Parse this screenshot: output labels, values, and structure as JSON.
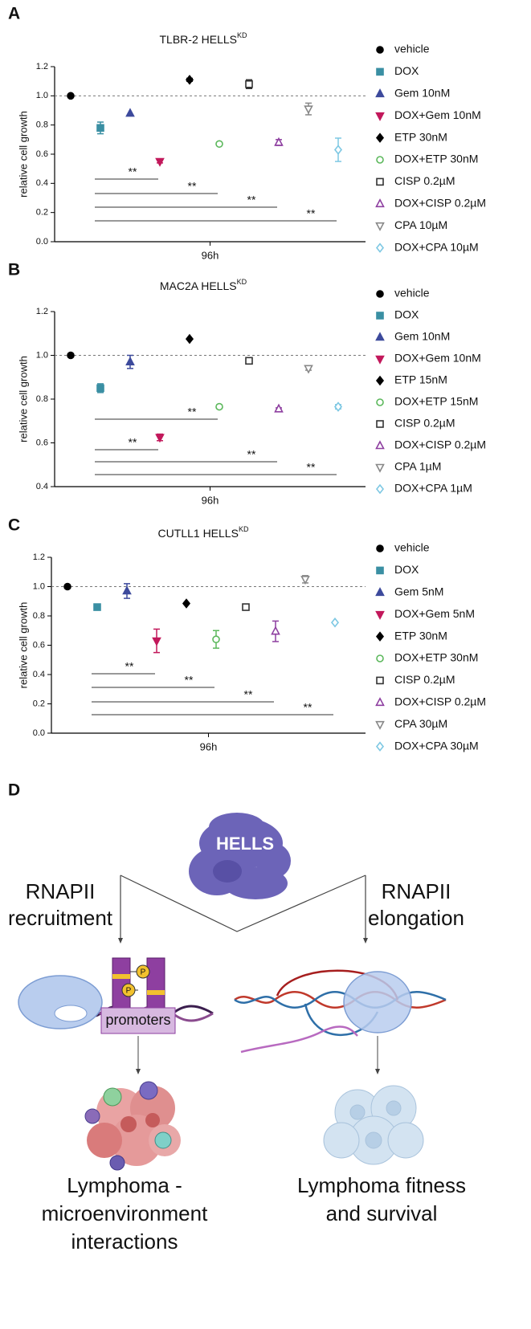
{
  "panel_labels": [
    "A",
    "B",
    "C",
    "D"
  ],
  "chart_data": [
    {
      "type": "dotplot",
      "title": "TLBR-2 HELLS",
      "title_sup": "KD",
      "y_label": "relative cell growth",
      "categories": [
        "96h"
      ],
      "ylim": [
        0,
        1.2
      ],
      "yticks": [
        {
          "value": 0,
          "label": "0.0"
        },
        0.2,
        0.4,
        0.6,
        0.8,
        {
          "value": 1,
          "label": "1.0"
        },
        1.2
      ],
      "refline": 1,
      "legend": "right",
      "series": [
        {
          "name": "vehicle",
          "color": "#000000",
          "marker": "circle",
          "filled": true,
          "values": [
            1.0
          ],
          "errors": [
            0
          ]
        },
        {
          "name": "DOX",
          "color": "#3a8fa3",
          "marker": "square",
          "filled": true,
          "values": [
            0.78
          ],
          "errors": [
            0.04
          ]
        },
        {
          "name": "Gem 10nM",
          "color": "#3d4a9c",
          "marker": "triangle",
          "filled": true,
          "values": [
            0.88
          ],
          "errors": [
            0
          ]
        },
        {
          "name": "DOX+Gem 10nM",
          "color": "#c2185b",
          "marker": "triangle-down",
          "filled": true,
          "values": [
            0.55
          ],
          "errors": [
            0.01
          ]
        },
        {
          "name": "ETP 30nM",
          "color": "#000000",
          "marker": "diamond",
          "filled": true,
          "values": [
            1.11
          ],
          "errors": [
            0.01
          ]
        },
        {
          "name": "DOX+ETP 30nM",
          "color": "#5cb85c",
          "marker": "circle",
          "filled": false,
          "values": [
            0.67
          ],
          "errors": [
            0.01
          ]
        },
        {
          "name": "CISP 0.2µM",
          "color": "#333333",
          "marker": "square",
          "filled": false,
          "values": [
            1.08
          ],
          "errors": [
            0.03
          ]
        },
        {
          "name": "DOX+CISP 0.2µM",
          "color": "#8e3fa0",
          "marker": "triangle",
          "filled": false,
          "values": [
            0.68
          ],
          "errors": [
            0.02
          ]
        },
        {
          "name": "CPA 10µM",
          "color": "#888888",
          "marker": "triangle-down",
          "filled": false,
          "values": [
            0.91
          ],
          "errors": [
            0.04
          ]
        },
        {
          "name": "DOX+CPA 10µM",
          "color": "#7ec8e3",
          "marker": "diamond",
          "filled": false,
          "values": [
            0.63
          ],
          "errors": [
            0.08
          ]
        }
      ],
      "comparisons": [
        {
          "from": "DOX",
          "to": "DOX+Gem 10nM",
          "label": "**"
        },
        {
          "from": "DOX",
          "to": "DOX+ETP 30nM",
          "label": "**"
        },
        {
          "from": "DOX",
          "to": "DOX+CISP 0.2µM",
          "label": "**"
        },
        {
          "from": "DOX",
          "to": "DOX+CPA 10µM",
          "label": "**"
        }
      ]
    },
    {
      "type": "dotplot",
      "title": "MAC2A HELLS",
      "title_sup": "KD",
      "y_label": "relative cell growth",
      "categories": [
        "96h"
      ],
      "ylim": [
        0.4,
        1.2
      ],
      "yticks": [
        0.4,
        0.6,
        0.8,
        {
          "value": 1,
          "label": "1.0"
        },
        1.2
      ],
      "refline": 1,
      "legend": "right",
      "series": [
        {
          "name": "vehicle",
          "color": "#000000",
          "marker": "circle",
          "filled": true,
          "values": [
            1.0
          ],
          "errors": [
            0
          ]
        },
        {
          "name": "DOX",
          "color": "#3a8fa3",
          "marker": "square",
          "filled": true,
          "values": [
            0.85
          ],
          "errors": [
            0.02
          ]
        },
        {
          "name": "Gem 10nM",
          "color": "#3d4a9c",
          "marker": "triangle",
          "filled": true,
          "values": [
            0.97
          ],
          "errors": [
            0.03
          ]
        },
        {
          "name": "DOX+Gem 10nM",
          "color": "#c2185b",
          "marker": "triangle-down",
          "filled": true,
          "values": [
            0.625
          ],
          "errors": [
            0.015
          ]
        },
        {
          "name": "ETP 15nM",
          "color": "#000000",
          "marker": "diamond",
          "filled": true,
          "values": [
            1.075
          ],
          "errors": [
            0
          ]
        },
        {
          "name": "DOX+ETP 15nM",
          "color": "#5cb85c",
          "marker": "circle",
          "filled": false,
          "values": [
            0.765
          ],
          "errors": [
            0.008
          ]
        },
        {
          "name": "CISP 0.2µM",
          "color": "#333333",
          "marker": "square",
          "filled": false,
          "values": [
            0.975
          ],
          "errors": [
            0.008
          ]
        },
        {
          "name": "DOX+CISP 0.2µM",
          "color": "#8e3fa0",
          "marker": "triangle",
          "filled": false,
          "values": [
            0.755
          ],
          "errors": [
            0.005
          ]
        },
        {
          "name": "CPA 1µM",
          "color": "#888888",
          "marker": "triangle-down",
          "filled": false,
          "values": [
            0.94
          ],
          "errors": [
            0.008
          ]
        },
        {
          "name": "DOX+CPA 1µM",
          "color": "#7ec8e3",
          "marker": "diamond",
          "filled": false,
          "values": [
            0.765
          ],
          "errors": [
            0.01
          ]
        }
      ],
      "comparisons": [
        {
          "from": "DOX",
          "to": "DOX+ETP 15nM",
          "label": "**"
        },
        {
          "from": "DOX",
          "to": "DOX+Gem 10nM",
          "label": "**"
        },
        {
          "from": "DOX",
          "to": "DOX+CISP 0.2µM",
          "label": "**"
        },
        {
          "from": "DOX",
          "to": "DOX+CPA 1µM",
          "label": "**"
        }
      ]
    },
    {
      "type": "dotplot",
      "title": "CUTLL1 HELLS",
      "title_sup": "KD",
      "y_label": "relative cell growth",
      "categories": [
        "96h"
      ],
      "ylim": [
        0,
        1.2
      ],
      "yticks": [
        {
          "value": 0,
          "label": "0.0"
        },
        0.2,
        0.4,
        0.6,
        0.8,
        {
          "value": 1,
          "label": "1.0"
        },
        1.2
      ],
      "refline": 1,
      "legend": "right",
      "series": [
        {
          "name": "vehicle",
          "color": "#000000",
          "marker": "circle",
          "filled": true,
          "values": [
            1.0
          ],
          "errors": [
            0
          ]
        },
        {
          "name": "DOX",
          "color": "#3a8fa3",
          "marker": "square",
          "filled": true,
          "values": [
            0.86
          ],
          "errors": [
            0
          ]
        },
        {
          "name": "Gem 5nM",
          "color": "#3d4a9c",
          "marker": "triangle",
          "filled": true,
          "values": [
            0.97
          ],
          "errors": [
            0.05
          ]
        },
        {
          "name": "DOX+Gem 5nM",
          "color": "#c2185b",
          "marker": "triangle-down",
          "filled": true,
          "values": [
            0.63
          ],
          "errors": [
            0.08
          ]
        },
        {
          "name": "ETP 30nM",
          "color": "#000000",
          "marker": "diamond",
          "filled": true,
          "values": [
            0.885
          ],
          "errors": [
            0.005
          ]
        },
        {
          "name": "DOX+ETP 30nM",
          "color": "#5cb85c",
          "marker": "circle",
          "filled": false,
          "values": [
            0.64
          ],
          "errors": [
            0.06
          ]
        },
        {
          "name": "CISP 0.2µM",
          "color": "#333333",
          "marker": "square",
          "filled": false,
          "values": [
            0.86
          ],
          "errors": [
            0.02
          ]
        },
        {
          "name": "DOX+CISP 0.2µM",
          "color": "#8e3fa0",
          "marker": "triangle",
          "filled": false,
          "values": [
            0.695
          ],
          "errors": [
            0.07
          ]
        },
        {
          "name": "CPA 30µM",
          "color": "#888888",
          "marker": "triangle-down",
          "filled": false,
          "values": [
            1.05
          ],
          "errors": [
            0.025
          ]
        },
        {
          "name": "DOX+CPA 30µM",
          "color": "#7ec8e3",
          "marker": "diamond",
          "filled": false,
          "values": [
            0.755
          ],
          "errors": [
            0
          ]
        }
      ],
      "comparisons": [
        {
          "from": "DOX",
          "to": "DOX+Gem 5nM",
          "label": "**"
        },
        {
          "from": "DOX",
          "to": "DOX+ETP 30nM",
          "label": "**"
        },
        {
          "from": "DOX",
          "to": "DOX+CISP 0.2µM",
          "label": "**"
        },
        {
          "from": "DOX",
          "to": "DOX+CPA 30µM",
          "label": "**"
        }
      ]
    }
  ],
  "diagram": {
    "hells": "HELLS",
    "left_label": [
      "RNAPII",
      "recruitment"
    ],
    "right_label": [
      "RNAPII",
      "elongation"
    ],
    "promoters": "promoters",
    "phospho": [
      "P",
      "P"
    ],
    "left_outcome": [
      "Lymphoma -",
      "microenvironment",
      "interactions"
    ],
    "right_outcome": [
      "Lymphoma fitness",
      "and survival"
    ]
  }
}
